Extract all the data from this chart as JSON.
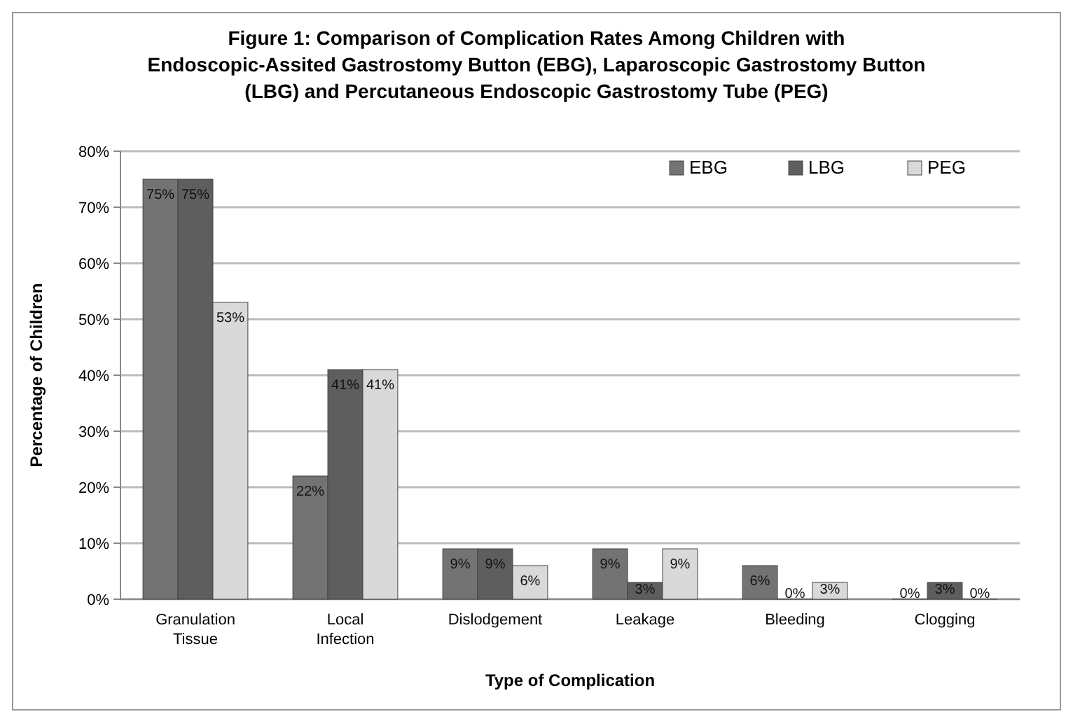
{
  "chart_data": {
    "type": "bar",
    "title": "Figure 1: Comparison of Complication Rates Among Children with Endoscopic-Assited Gastrostomy Button (EBG), Laparoscopic Gastrostomy Button (LBG) and Percutaneous Endoscopic Gastrostomy Tube (PEG)",
    "xlabel": "Type of Complication",
    "ylabel": "Percentage of Children",
    "categories": [
      "Granulation Tissue",
      "Local Infection",
      "Dislodgement",
      "Leakage",
      "Bleeding",
      "Clogging"
    ],
    "series": [
      {
        "name": "EBG",
        "color": "#737373",
        "values": [
          75,
          22,
          9,
          9,
          6,
          0
        ],
        "value_labels": [
          "75%",
          "22%",
          "9%",
          "9%",
          "6%",
          "0%"
        ]
      },
      {
        "name": "LBG",
        "color": "#5e5e5e",
        "values": [
          75,
          41,
          9,
          3,
          0,
          3
        ],
        "value_labels": [
          "75%",
          "41%",
          "9%",
          "3%",
          "0%",
          "3%"
        ]
      },
      {
        "name": "PEG",
        "color": "#d9d9d9",
        "values": [
          53,
          41,
          6,
          9,
          3,
          0
        ],
        "value_labels": [
          "53%",
          "41%",
          "6%",
          "9%",
          "3%",
          "0%"
        ]
      }
    ],
    "ylim": [
      0,
      80
    ],
    "yticks": [
      {
        "value": 0,
        "label": "0%"
      },
      {
        "value": 10,
        "label": "10%"
      },
      {
        "value": 20,
        "label": "20%"
      },
      {
        "value": 30,
        "label": "30%"
      },
      {
        "value": 40,
        "label": "40%"
      },
      {
        "value": 50,
        "label": "50%"
      },
      {
        "value": 60,
        "label": "60%"
      },
      {
        "value": 70,
        "label": "70%"
      },
      {
        "value": 80,
        "label": "80%"
      }
    ],
    "grid": "y",
    "legend": "top right"
  }
}
